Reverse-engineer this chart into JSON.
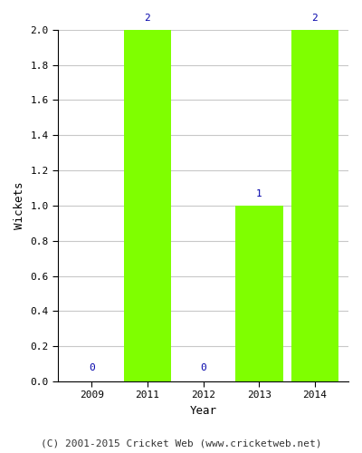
{
  "years": [
    2009,
    2011,
    2012,
    2013,
    2014
  ],
  "wickets": [
    0,
    2,
    0,
    1,
    2
  ],
  "bar_color": "#7FFF00",
  "bar_edge_color": "#7FFF00",
  "label_color": "#0000AA",
  "title": "",
  "xlabel": "Year",
  "ylabel": "Wickets",
  "ylim": [
    0.0,
    2.0
  ],
  "yticks": [
    0.0,
    0.2,
    0.4,
    0.6,
    0.8,
    1.0,
    1.2,
    1.4,
    1.6,
    1.8,
    2.0
  ],
  "caption": "(C) 2001-2015 Cricket Web (www.cricketweb.net)",
  "background_color": "#ffffff",
  "grid_color": "#c8c8c8",
  "bar_width": 0.85,
  "label_fontsize": 8,
  "axis_label_fontsize": 9,
  "tick_fontsize": 8,
  "caption_fontsize": 8
}
